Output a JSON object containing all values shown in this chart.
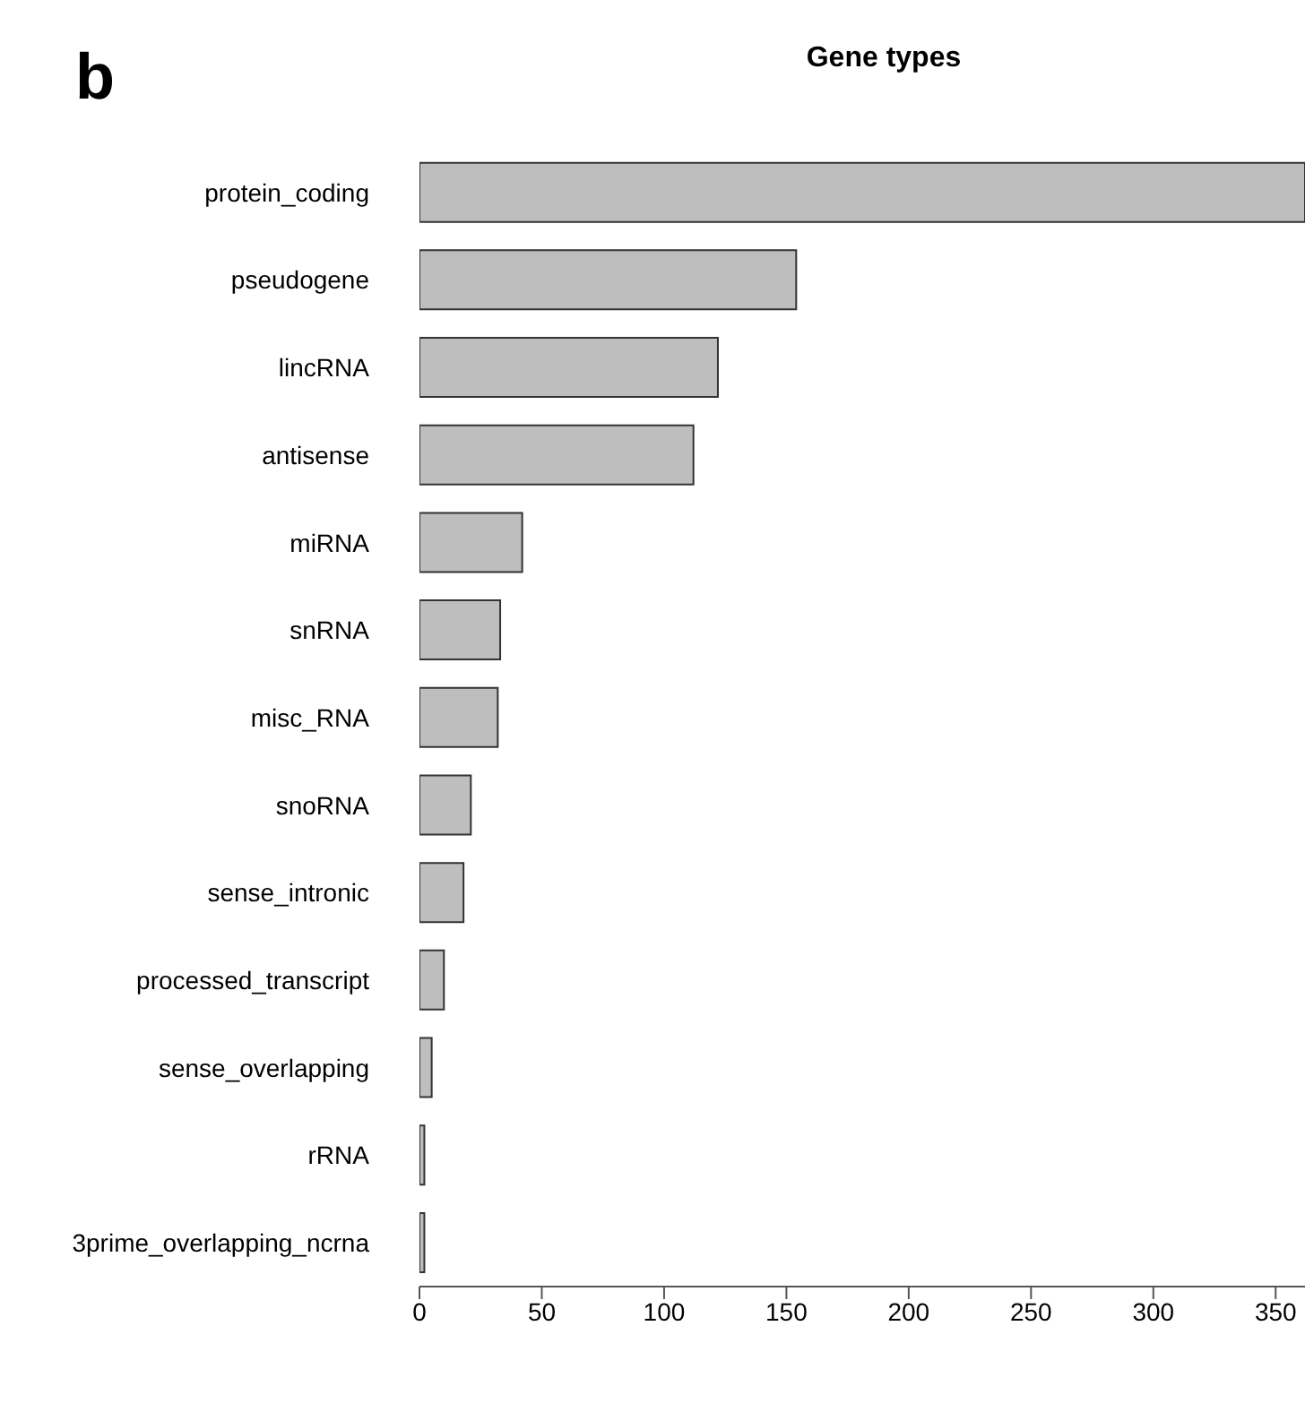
{
  "chart_data": {
    "type": "bar",
    "orientation": "horizontal",
    "title": "Gene types",
    "annotations": [
      "b"
    ],
    "categories": [
      "protein_coding",
      "pseudogene",
      "lincRNA",
      "antisense",
      "miRNA",
      "snRNA",
      "misc_RNA",
      "snoRNA",
      "sense_intronic",
      "processed_transcript",
      "sense_overlapping",
      "rRNA",
      "3prime_overlapping_ncrna"
    ],
    "values": [
      362,
      154,
      122,
      112,
      42,
      33,
      32,
      21,
      18,
      10,
      5,
      2,
      2
    ],
    "color": "#bebebe",
    "xlim": [
      0,
      362
    ],
    "xticks": [
      0,
      50,
      100,
      150,
      200,
      250,
      300,
      350
    ],
    "grid": false,
    "legend": false
  }
}
